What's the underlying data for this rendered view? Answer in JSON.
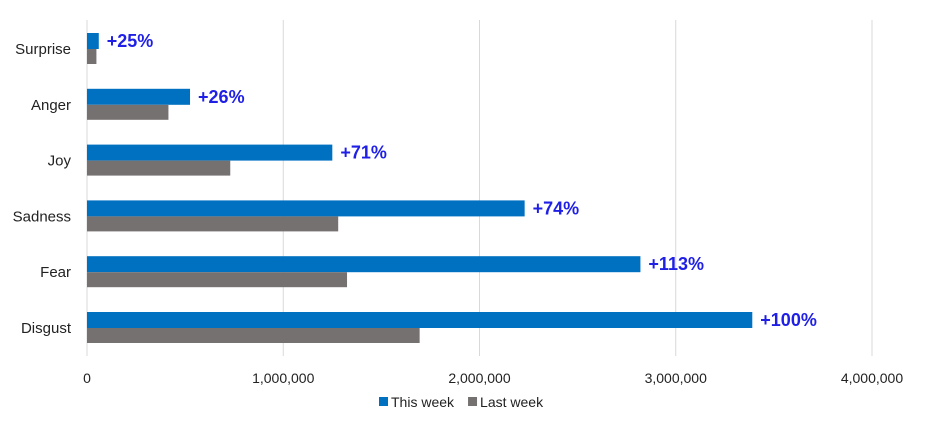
{
  "chart_data": {
    "type": "bar",
    "orientation": "horizontal",
    "title": "",
    "xlabel": "",
    "ylabel": "",
    "categories": [
      "Surprise",
      "Anger",
      "Joy",
      "Sadness",
      "Fear",
      "Disgust"
    ],
    "series": [
      {
        "name": "This week",
        "color": "#0070C0",
        "values": [
          60000,
          525000,
          1250000,
          2230000,
          2820000,
          3390000
        ]
      },
      {
        "name": "Last week",
        "color": "#767171",
        "values": [
          48000,
          415000,
          730000,
          1280000,
          1325000,
          1695000
        ]
      }
    ],
    "data_labels": [
      "+25%",
      "+26%",
      "+71%",
      "+74%",
      "+113%",
      "+100%"
    ],
    "data_label_color": "#1F1FE6",
    "xlim": [
      0,
      4000000
    ],
    "xticks": [
      0,
      1000000,
      2000000,
      3000000,
      4000000
    ],
    "xtick_labels": [
      "0",
      "1,000,000",
      "2,000,000",
      "3,000,000",
      "4,000,000"
    ],
    "grid": true,
    "legend_position": "bottom"
  }
}
